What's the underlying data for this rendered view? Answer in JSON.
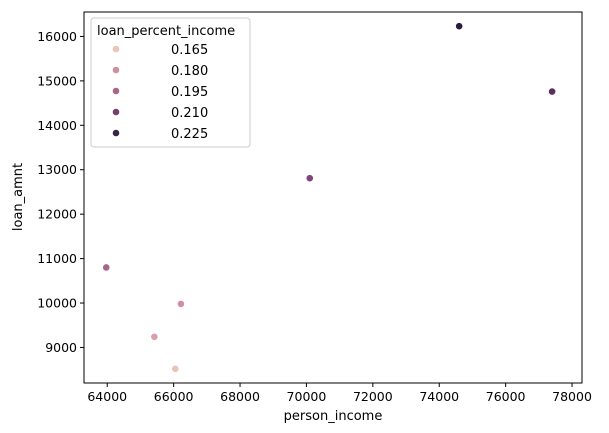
{
  "chart_data": {
    "type": "scatter",
    "title": "",
    "xlabel": "person_income",
    "ylabel": "loan_amnt",
    "xlim": [
      63300,
      78300
    ],
    "ylim": [
      8200,
      16550
    ],
    "xticks": [
      64000,
      66000,
      68000,
      70000,
      72000,
      74000,
      76000,
      78000
    ],
    "yticks": [
      9000,
      10000,
      11000,
      12000,
      13000,
      14000,
      15000,
      16000
    ],
    "grid": false,
    "legend": {
      "title": "loan_percent_income",
      "placement": "top-left",
      "entries": [
        {
          "label": "0.165",
          "color": "#ebc3b8"
        },
        {
          "label": "0.180",
          "color": "#d08f9c"
        },
        {
          "label": "0.195",
          "color": "#a8668c"
        },
        {
          "label": "0.210",
          "color": "#73406f"
        },
        {
          "label": "0.225",
          "color": "#3a2445"
        }
      ]
    },
    "points": [
      {
        "x": 66050,
        "y": 8520,
        "color": "#ebc3b8"
      },
      {
        "x": 65420,
        "y": 9240,
        "color": "#d8a0a8"
      },
      {
        "x": 66220,
        "y": 9980,
        "color": "#d08f9c"
      },
      {
        "x": 63970,
        "y": 10800,
        "color": "#a8668c"
      },
      {
        "x": 70100,
        "y": 12810,
        "color": "#7f4479"
      },
      {
        "x": 77400,
        "y": 14760,
        "color": "#5a2f5e"
      },
      {
        "x": 74600,
        "y": 16230,
        "color": "#2b1d3d"
      }
    ]
  }
}
